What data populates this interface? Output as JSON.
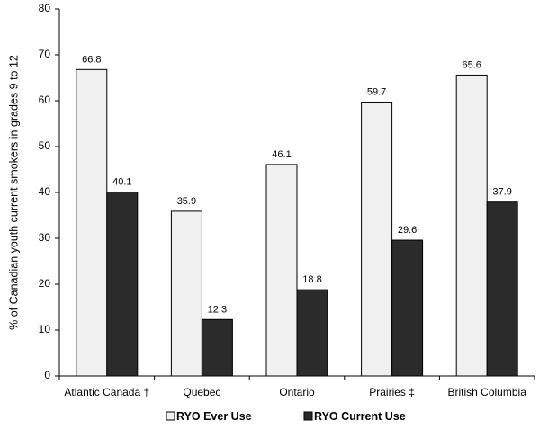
{
  "chart_data": {
    "type": "bar",
    "categories": [
      "Atlantic Canada †",
      "Quebec",
      "Ontario",
      "Prairies ‡",
      "British Columbia"
    ],
    "series": [
      {
        "name": "RYO Ever Use",
        "values": [
          66.8,
          35.9,
          46.1,
          59.7,
          65.6
        ],
        "color": "#f0f0f0"
      },
      {
        "name": "RYO Current Use",
        "values": [
          40.1,
          12.3,
          18.8,
          29.6,
          37.9
        ],
        "color": "#2b2b2b"
      }
    ],
    "data_labels": [
      [
        "66.8",
        "35.9",
        "46.1",
        "59.7",
        "65.6"
      ],
      [
        "40.1",
        "12.3",
        "18.8",
        "29.6",
        "37.9"
      ]
    ],
    "ylabel": "% of Canadian youth current smokers in grades 9 to 12",
    "xlabel": "",
    "ylim": [
      0,
      80
    ],
    "yticks": [
      0,
      10,
      20,
      30,
      40,
      50,
      60,
      70,
      80
    ],
    "grid": false,
    "legend": {
      "position": "bottom",
      "entries": [
        "RYO Ever Use",
        "RYO Current Use"
      ]
    }
  }
}
